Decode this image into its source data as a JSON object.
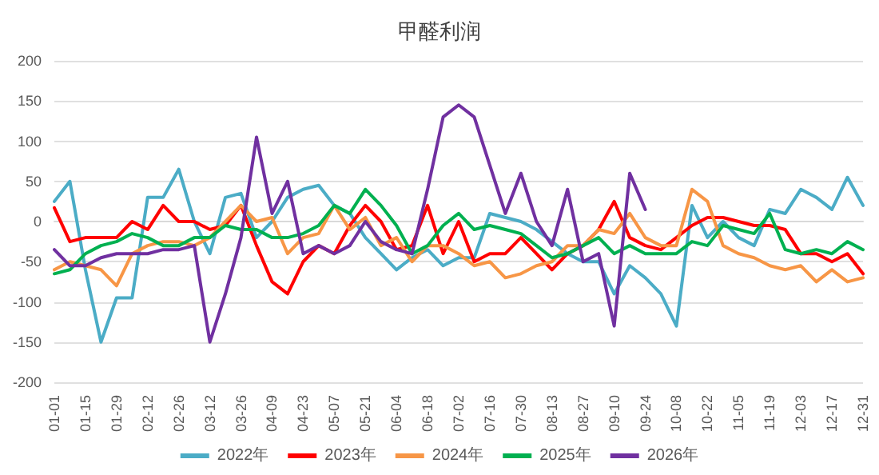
{
  "chart_data": {
    "type": "line",
    "title": "甲醛利润",
    "categories": [
      "01-01",
      null,
      "01-15",
      null,
      "01-29",
      null,
      "02-12",
      null,
      "02-26",
      null,
      "03-12",
      null,
      "03-26",
      null,
      "04-09",
      null,
      "04-23",
      null,
      "05-07",
      null,
      "05-21",
      null,
      "06-04",
      null,
      "06-18",
      null,
      "07-02",
      null,
      "07-16",
      null,
      "07-30",
      null,
      "08-13",
      null,
      "08-27",
      null,
      "09-10",
      null,
      "09-24",
      null,
      "10-08",
      null,
      "10-22",
      null,
      "11-05",
      null,
      "11-19",
      null,
      "12-03",
      null,
      "12-17",
      null,
      "12-31"
    ],
    "series": [
      {
        "name": "2022年",
        "color": "#4bacc6",
        "values": [
          25,
          50,
          -60,
          -150,
          -95,
          -95,
          30,
          30,
          65,
          0,
          -40,
          30,
          35,
          -20,
          0,
          30,
          40,
          45,
          20,
          10,
          -20,
          -40,
          -60,
          -45,
          -35,
          -55,
          -45,
          -45,
          10,
          5,
          0,
          -10,
          -25,
          -40,
          -50,
          -50,
          -90,
          -55,
          -70,
          -90,
          -130,
          20,
          -20,
          0,
          -20,
          -30,
          15,
          10,
          40,
          30,
          15,
          55,
          20
        ]
      },
      {
        "name": "2023年",
        "color": "#ff0000",
        "values": [
          17,
          -25,
          -20,
          -20,
          -20,
          0,
          -10,
          20,
          0,
          0,
          -10,
          -5,
          20,
          -30,
          -75,
          -90,
          -50,
          -30,
          -40,
          -5,
          20,
          0,
          -35,
          -30,
          20,
          -40,
          0,
          -50,
          -40,
          -40,
          -20,
          -40,
          -60,
          -40,
          -30,
          -10,
          25,
          -20,
          -30,
          -35,
          -20,
          -5,
          5,
          5,
          0,
          -5,
          -5,
          -10,
          -40,
          -40,
          -50,
          -40,
          -65
        ]
      },
      {
        "name": "2024年",
        "color": "#f79646",
        "values": [
          -60,
          -50,
          -55,
          -60,
          -80,
          -40,
          -30,
          -25,
          -25,
          -30,
          -20,
          0,
          20,
          0,
          5,
          -40,
          -20,
          -15,
          20,
          -10,
          5,
          -30,
          -20,
          -50,
          -30,
          -30,
          -40,
          -55,
          -50,
          -70,
          -65,
          -55,
          -50,
          -30,
          -30,
          -10,
          -15,
          10,
          -20,
          -30,
          -30,
          40,
          25,
          -30,
          -40,
          -45,
          -55,
          -60,
          -55,
          -75,
          -60,
          -75,
          -70
        ]
      },
      {
        "name": "2025年",
        "color": "#00b050",
        "values": [
          -65,
          -60,
          -40,
          -30,
          -25,
          -15,
          -20,
          -30,
          -30,
          -20,
          -20,
          -5,
          -10,
          -10,
          -20,
          -20,
          -15,
          -5,
          20,
          10,
          40,
          20,
          -5,
          -40,
          -30,
          -5,
          10,
          -10,
          -5,
          -10,
          -15,
          -30,
          -45,
          -40,
          -30,
          -20,
          -40,
          -30,
          -40,
          -40,
          -40,
          -25,
          -30,
          -5,
          -10,
          -15,
          10,
          -35,
          -40,
          -35,
          -40,
          -25,
          -35
        ]
      },
      {
        "name": "2026年",
        "color": "#7030a0",
        "values": [
          -35,
          -55,
          -55,
          -45,
          -40,
          -40,
          -40,
          -35,
          -35,
          -30,
          -150,
          -90,
          -20,
          105,
          10,
          50,
          -40,
          -30,
          -40,
          -30,
          0,
          -25,
          -35,
          -40,
          40,
          130,
          145,
          130,
          70,
          10,
          60,
          0,
          -30,
          40,
          -50,
          -40,
          -130,
          60,
          15,
          null,
          null,
          null,
          null,
          null,
          null,
          null,
          null,
          null,
          null,
          null,
          null,
          null,
          null
        ]
      }
    ],
    "ylim": [
      -200,
      200
    ],
    "yticks": [
      -200,
      -150,
      -100,
      -50,
      0,
      50,
      100,
      150,
      200
    ],
    "grid": "y",
    "legend": "bottom"
  }
}
